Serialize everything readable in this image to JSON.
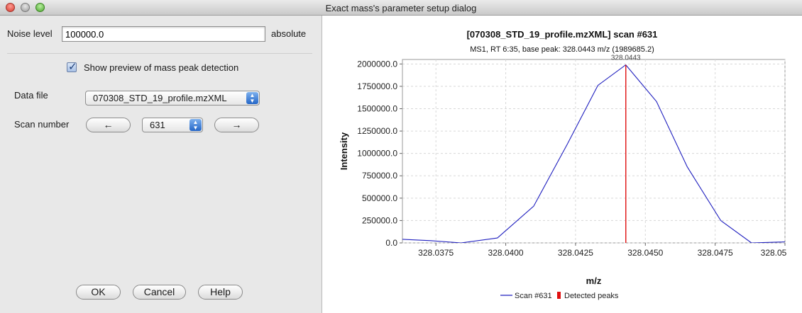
{
  "window": {
    "title": "Exact mass's parameter setup dialog"
  },
  "form": {
    "noise_label": "Noise level",
    "noise_value": "100000.0",
    "noise_unit": "absolute",
    "preview_label": "Show preview of mass peak detection",
    "preview_checked": true,
    "data_file_label": "Data file",
    "data_file_value": "070308_STD_19_profile.mzXML",
    "scan_label": "Scan number",
    "scan_prev": "←",
    "scan_value": "631",
    "scan_next": "→"
  },
  "buttons": {
    "ok": "OK",
    "cancel": "Cancel",
    "help": "Help"
  },
  "colors": {
    "series": "#1f1fbf",
    "peak": "#e01010",
    "grid": "#d8d8d8"
  },
  "icons": {
    "checkbox": "checkmark-icon",
    "combo": "updown-arrows-icon"
  },
  "chart_data": {
    "type": "line",
    "title": "[070308_STD_19_profile.mzXML] scan #631",
    "subtitle": "MS1, RT 6:35, base peak: 328.0443 m/z (1989685.2)",
    "xlabel": "m/z",
    "ylabel": "Intensity",
    "xlim": [
      328.0363,
      328.05
    ],
    "ylim": [
      0,
      2050000
    ],
    "x_ticks": [
      328.0375,
      328.04,
      328.0425,
      328.045,
      328.0475,
      328.05
    ],
    "x_tick_labels": [
      "328.0375",
      "328.0400",
      "328.0425",
      "328.0450",
      "328.0475",
      "328.0500"
    ],
    "x_edge_label": "328.05",
    "y_ticks": [
      0,
      250000,
      500000,
      750000,
      1000000,
      1250000,
      1500000,
      1750000,
      2000000
    ],
    "y_tick_labels": [
      "0.0",
      "250000.0",
      "500000.0",
      "750000.0",
      "1000000.0",
      "1250000.0",
      "1500000.0",
      "1750000.0",
      "2000000.0"
    ],
    "grid": true,
    "legend_position": "bottom",
    "series": [
      {
        "name": "Scan #631",
        "x": [
          328.0363,
          328.0373,
          328.0384,
          328.0397,
          328.041,
          328.0422,
          328.0433,
          328.0443,
          328.0454,
          328.0465,
          328.0477,
          328.0488,
          328.0499,
          328.0511,
          328.0522
        ],
        "y": [
          40000,
          25000,
          0,
          55000,
          410000,
          1100000,
          1760000,
          1989685,
          1580000,
          850000,
          250000,
          0,
          10000,
          30000,
          45000
        ]
      }
    ],
    "peaks": [
      {
        "name": "Detected peaks",
        "x": 328.0443,
        "y": 1989685.2,
        "label": "328.0443"
      }
    ]
  }
}
